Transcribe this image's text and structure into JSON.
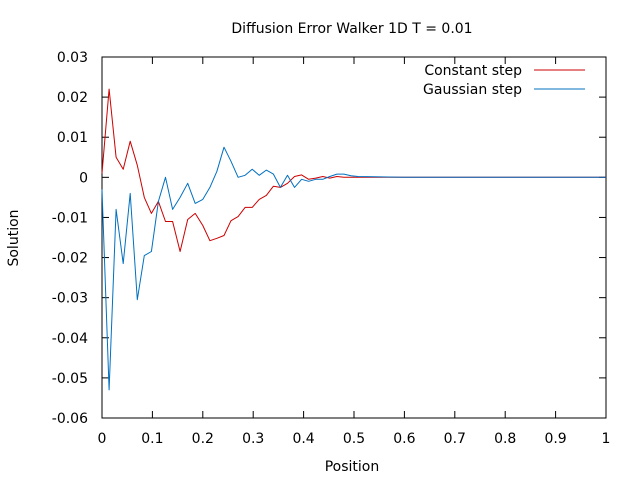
{
  "chart_data": {
    "type": "line",
    "title": "Diffusion Error Walker 1D T = 0.01",
    "xlabel": "Position",
    "ylabel": "Solution",
    "xlim": [
      0,
      1
    ],
    "ylim": [
      -0.06,
      0.03
    ],
    "x_ticks": [
      0,
      0.1,
      0.2,
      0.3,
      0.4,
      0.5,
      0.6,
      0.7,
      0.8,
      0.9,
      1
    ],
    "x_tick_labels": [
      "0",
      "0.1",
      "0.2",
      "0.3",
      "0.4",
      "0.5",
      "0.6",
      "0.7",
      "0.8",
      "0.9",
      "1"
    ],
    "y_ticks": [
      -0.06,
      -0.05,
      -0.04,
      -0.03,
      -0.02,
      -0.01,
      0,
      0.01,
      0.02,
      0.03
    ],
    "y_tick_labels": [
      "-0.06",
      "-0.05",
      "-0.04",
      "-0.03",
      "-0.02",
      "-0.01",
      "0",
      "0.01",
      "0.02",
      "0.03"
    ],
    "grid": false,
    "legend_position": "top-right",
    "series": [
      {
        "name": "Constant step",
        "color": "#cc0000",
        "x": [
          0,
          0.014,
          0.028,
          0.042,
          0.056,
          0.07,
          0.084,
          0.098,
          0.112,
          0.126,
          0.14,
          0.155,
          0.17,
          0.185,
          0.2,
          0.214,
          0.228,
          0.242,
          0.256,
          0.27,
          0.284,
          0.298,
          0.312,
          0.326,
          0.34,
          0.354,
          0.368,
          0.382,
          0.396,
          0.41,
          0.424,
          0.438,
          0.452,
          0.466,
          0.48,
          0.494,
          0.508,
          0.6,
          0.7,
          0.8,
          0.9,
          1.0
        ],
        "y": [
          0.001,
          0.022,
          0.005,
          0.002,
          0.009,
          0.003,
          -0.005,
          -0.009,
          -0.006,
          -0.011,
          -0.011,
          -0.0185,
          -0.0105,
          -0.009,
          -0.012,
          -0.0158,
          -0.0152,
          -0.0145,
          -0.0108,
          -0.0098,
          -0.0075,
          -0.0075,
          -0.0055,
          -0.0045,
          -0.0022,
          -0.0025,
          -0.0015,
          0.0002,
          0.0006,
          -0.0005,
          -0.0002,
          0.0002,
          -0.0002,
          0.0002,
          0.0,
          0.0,
          0.0,
          0.0,
          0.0,
          0.0,
          0.0,
          0.0
        ]
      },
      {
        "name": "Gaussian step",
        "color": "#0070c0",
        "x": [
          0,
          0.014,
          0.028,
          0.042,
          0.056,
          0.07,
          0.084,
          0.098,
          0.112,
          0.126,
          0.14,
          0.155,
          0.17,
          0.185,
          0.2,
          0.214,
          0.228,
          0.242,
          0.256,
          0.27,
          0.284,
          0.298,
          0.312,
          0.326,
          0.34,
          0.354,
          0.368,
          0.382,
          0.396,
          0.41,
          0.424,
          0.438,
          0.452,
          0.466,
          0.48,
          0.494,
          0.508,
          0.6,
          0.7,
          0.8,
          0.9,
          1.0
        ],
        "y": [
          -0.003,
          -0.053,
          -0.008,
          -0.0215,
          -0.004,
          -0.0305,
          -0.0195,
          -0.0185,
          -0.006,
          0.0,
          -0.008,
          -0.005,
          -0.0015,
          -0.0065,
          -0.0055,
          -0.0025,
          0.0015,
          0.0075,
          0.004,
          0.0,
          0.0005,
          0.002,
          0.0005,
          0.0018,
          0.0008,
          -0.0025,
          0.0005,
          -0.0025,
          -0.0005,
          -0.001,
          -0.0005,
          -0.0005,
          0.0002,
          0.0008,
          0.0008,
          0.0004,
          0.0002,
          0.0,
          0.0,
          0.0,
          0.0,
          0.0
        ]
      }
    ]
  }
}
